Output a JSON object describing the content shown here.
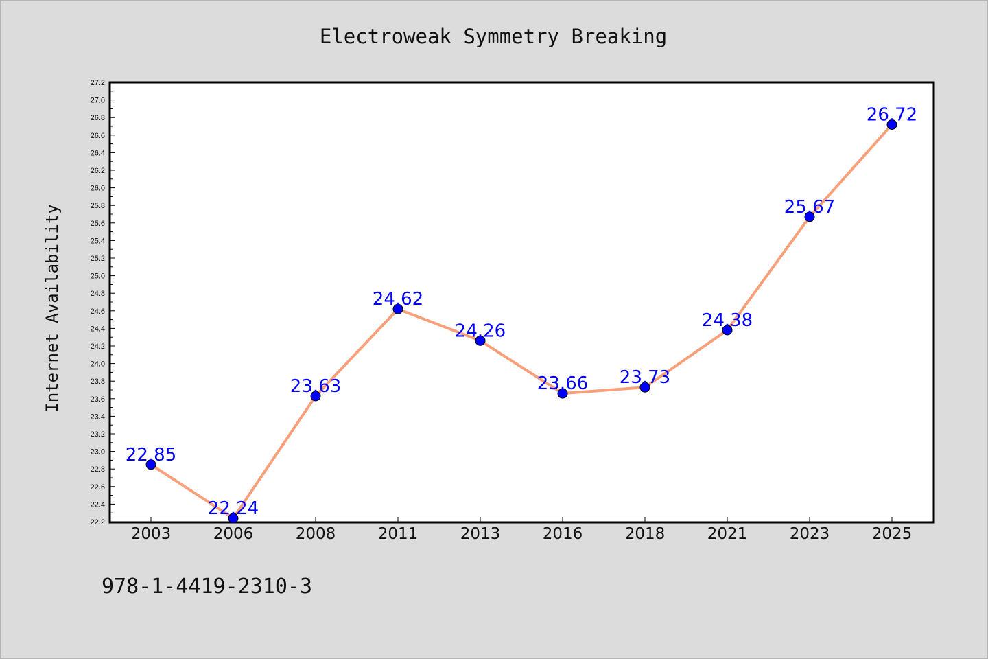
{
  "chart_data": {
    "type": "line",
    "title": "Electroweak Symmetry Breaking",
    "xlabel": "",
    "ylabel": "Internet Availability",
    "categories": [
      "2003",
      "2006",
      "2008",
      "2011",
      "2013",
      "2016",
      "2018",
      "2021",
      "2023",
      "2025"
    ],
    "series": [
      {
        "values": [
          22.85,
          22.24,
          23.63,
          24.62,
          24.26,
          23.66,
          23.73,
          24.38,
          25.67,
          26.72
        ],
        "line_color": "#f7a07a",
        "marker_color": "#0000ff"
      }
    ],
    "data_labels": [
      "22.85",
      "22.24",
      "23.63",
      "24.62",
      "24.26",
      "23.66",
      "23.73",
      "24.38",
      "25.67",
      "26.72"
    ],
    "ylim": [
      22.2,
      27.2
    ],
    "yticks": [
      "22.2",
      "22.4",
      "22.6",
      "22.8",
      "23.0",
      "23.2",
      "23.4",
      "23.6",
      "23.8",
      "24.0",
      "24.2",
      "24.4",
      "24.6",
      "24.8",
      "25.0",
      "25.2",
      "25.4",
      "25.6",
      "25.8",
      "26.0",
      "26.2",
      "26.4",
      "26.6",
      "26.8",
      "27.0",
      "27.2"
    ],
    "grid": false,
    "legend": "none",
    "data_label_color": "#0000ff"
  },
  "footnote": "978-1-4419-2310-3",
  "colors": {
    "background": "#dcdcdc",
    "plot_background": "#ffffff"
  }
}
